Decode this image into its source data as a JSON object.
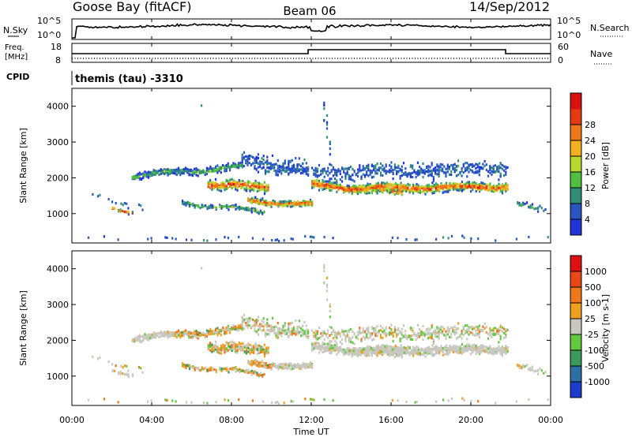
{
  "header": {
    "station": "Goose Bay (fitACF)",
    "beam": "Beam 06",
    "date": "14/Sep/2012"
  },
  "noise_panel": {
    "left_label": "N.Sky",
    "right_label": "N.Search",
    "left_ticks": [
      "10^5",
      "10^0"
    ],
    "right_ticks": [
      "10^5",
      "10^0"
    ]
  },
  "freq_panel": {
    "left_label_1": "Freq.",
    "left_label_2": "[MHz]",
    "right_label": "Nave",
    "left_ticks": [
      "18",
      "8"
    ],
    "right_ticks": [
      "60",
      "0"
    ]
  },
  "cpid": {
    "label": "CPID",
    "value": "themis (tau) -3310"
  },
  "time_axis": {
    "label": "Time UT",
    "ticks": [
      "00:00",
      "04:00",
      "08:00",
      "12:00",
      "16:00",
      "20:00",
      "00:00"
    ]
  },
  "chart_data": [
    {
      "type": "heatmap",
      "parameter": "Power",
      "ylabel": "Slant Range [km]",
      "xlabel": "Time UT",
      "xlim_hours": [
        0,
        24
      ],
      "ylim_km": [
        180,
        4500
      ],
      "y_ticks": [
        1000,
        2000,
        3000,
        4000
      ],
      "colorbar": {
        "label": "Power [dB]",
        "ticks": [
          "4",
          "8",
          "12",
          "16",
          "20",
          "24",
          "28"
        ],
        "colors": [
          "#1f35d8",
          "#2a55c0",
          "#2f8f78",
          "#4fbf40",
          "#b8d830",
          "#f4b020",
          "#f07818",
          "#e43a10",
          "#d81010"
        ]
      }
    },
    {
      "type": "heatmap",
      "parameter": "Velocity",
      "ylabel": "Slant Range [km]",
      "xlabel": "Time UT",
      "xlim_hours": [
        0,
        24
      ],
      "ylim_km": [
        180,
        4500
      ],
      "y_ticks": [
        1000,
        2000,
        3000,
        4000
      ],
      "colorbar": {
        "label": "Velocity [m s-1]",
        "ticks": [
          "1000",
          "500",
          "100",
          "25",
          "-25",
          "-100",
          "-500",
          "-1000"
        ],
        "colors": [
          "#1c3ccc",
          "#2c6fa4",
          "#3a9a5a",
          "#62c840",
          "#c8c8c0",
          "#f0a020",
          "#f07818",
          "#e84818",
          "#e01010"
        ]
      }
    }
  ]
}
